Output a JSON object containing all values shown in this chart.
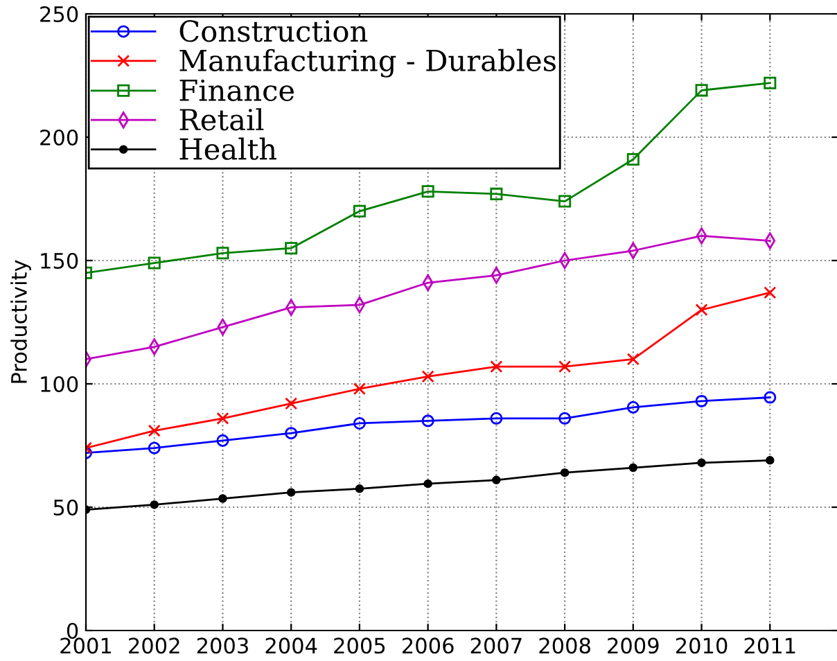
{
  "chart_data": {
    "type": "line",
    "ylabel": "Productivity",
    "x": [
      2001,
      2002,
      2003,
      2004,
      2005,
      2006,
      2007,
      2008,
      2009,
      2010,
      2011
    ],
    "xlim": [
      2001,
      2012
    ],
    "xticks": [
      2001,
      2002,
      2003,
      2004,
      2005,
      2006,
      2007,
      2008,
      2009,
      2010,
      2011
    ],
    "ylim": [
      0,
      250
    ],
    "yticks": [
      0,
      50,
      100,
      150,
      200,
      250
    ],
    "grid": true,
    "legend": "top left",
    "series": [
      {
        "name": "Construction",
        "color": "#0000ff",
        "marker": "circle",
        "values": [
          72,
          74,
          77,
          80,
          84,
          85,
          86,
          86,
          90.5,
          93,
          94.5
        ]
      },
      {
        "name": "Manufacturing - Durables",
        "color": "#ff0000",
        "marker": "cross",
        "values": [
          74,
          81,
          86,
          92,
          98,
          103,
          107,
          107,
          110,
          130,
          137
        ]
      },
      {
        "name": "Finance",
        "color": "#008000",
        "marker": "square",
        "values": [
          145,
          149,
          153,
          155,
          170,
          178,
          177,
          174,
          191,
          219,
          222
        ]
      },
      {
        "name": "Retail",
        "color": "#bf00bf",
        "marker": "diamond",
        "values": [
          110,
          115,
          123,
          131,
          132,
          141,
          144,
          150,
          154,
          160,
          158
        ]
      },
      {
        "name": "Health",
        "color": "#000000",
        "marker": "circle",
        "values": [
          49,
          51,
          53.5,
          56,
          57.5,
          59.5,
          61,
          64,
          66,
          68,
          69
        ]
      }
    ]
  }
}
